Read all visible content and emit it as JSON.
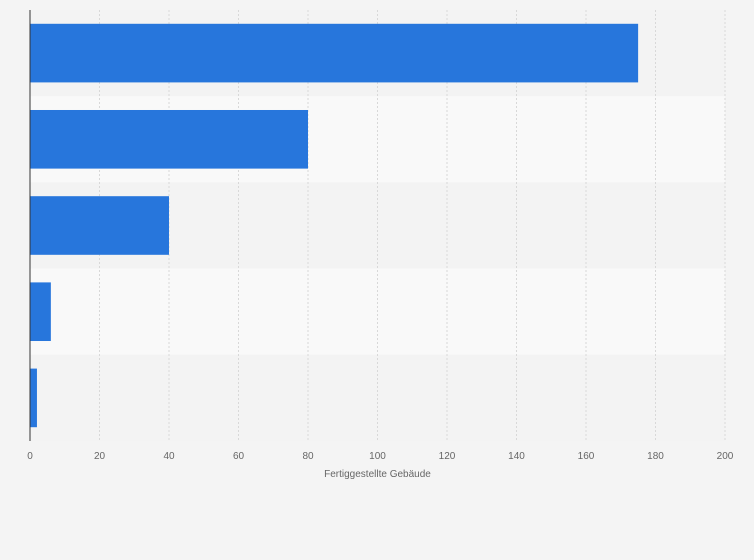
{
  "chart_data": {
    "type": "bar",
    "orientation": "horizontal",
    "categories": [
      "",
      "",
      "",
      "",
      ""
    ],
    "values": [
      175,
      80,
      40,
      6,
      2
    ],
    "xlim": [
      0,
      200
    ],
    "x_ticks": [
      0,
      20,
      40,
      60,
      80,
      100,
      120,
      140,
      160,
      180,
      200
    ],
    "xlabel": "Fertiggestellte Gebäude",
    "ylabel": "",
    "grid": "vertical",
    "legend": "none",
    "colors": {
      "bar": "#2776dc",
      "band_dark": "#f3f3f3",
      "band_light": "#f9f9f9",
      "grid": "#d8d8d8",
      "axis": "#333333",
      "text": "#666666"
    }
  }
}
